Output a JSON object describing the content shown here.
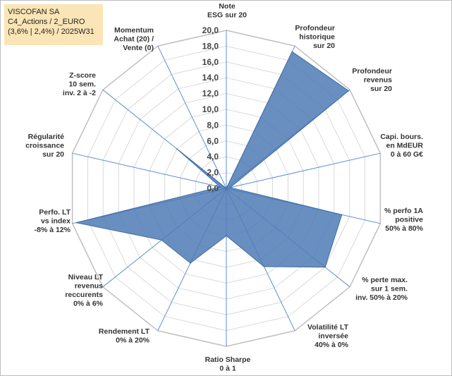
{
  "infobox": {
    "line1": "VISCOFAN SA",
    "line2": "C4_Actions / 2_EURO",
    "line3": "(3,6% | 2,4%) / 2025W31"
  },
  "colors": {
    "fill": "#4f7bb5",
    "stroke": "#3f6ca6",
    "grid": "#d9d9d9",
    "spoke": "#5b8fd3"
  },
  "chart_data": {
    "type": "radar",
    "rmax": 20,
    "ticks": [
      "0,0",
      "2,0",
      "4,0",
      "6,0",
      "8,0",
      "10,0",
      "12,0",
      "14,0",
      "16,0",
      "18,0",
      "20,0"
    ],
    "axes": [
      {
        "lines": [
          "Note",
          "ESG sur 20"
        ]
      },
      {
        "lines": [
          "Profondeur",
          "historique",
          "sur 20"
        ]
      },
      {
        "lines": [
          "Profondeur",
          "revenus",
          "sur 20"
        ]
      },
      {
        "lines": [
          "Capi. bours.",
          "en MdEUR",
          "0 à 60 G€"
        ]
      },
      {
        "lines": [
          "% perfo 1A",
          "positive",
          "50% à 80%"
        ]
      },
      {
        "lines": [
          "% perte max.",
          "sur 1 sem.",
          "inv. 50% à 20%"
        ]
      },
      {
        "lines": [
          "Volatilité LT",
          "inversée",
          "40% à 0%"
        ]
      },
      {
        "lines": [
          "Ratio Sharpe",
          "0 à 1"
        ]
      },
      {
        "lines": [
          "Rendement LT",
          "0% à 20%"
        ]
      },
      {
        "lines": [
          "Niveau LT",
          "revenus",
          "reccurents",
          "0% à 6%"
        ]
      },
      {
        "lines": [
          "Perfo. LT",
          "vs index",
          "-8% à 12%"
        ]
      },
      {
        "lines": [
          "Régularité",
          "croissance",
          "sur 20"
        ]
      },
      {
        "lines": [
          "Z-score",
          "10 sem.",
          "inv. 2 à -2"
        ]
      },
      {
        "lines": [
          "Momentum",
          "Achat (20) /",
          "Vente (0)"
        ]
      }
    ],
    "values": [
      0.0,
      19.2,
      19.8,
      0.5,
      15.0,
      16.0,
      11.0,
      6.0,
      10.5,
      10.5,
      19.5,
      0.8,
      8.0,
      0.0
    ]
  }
}
